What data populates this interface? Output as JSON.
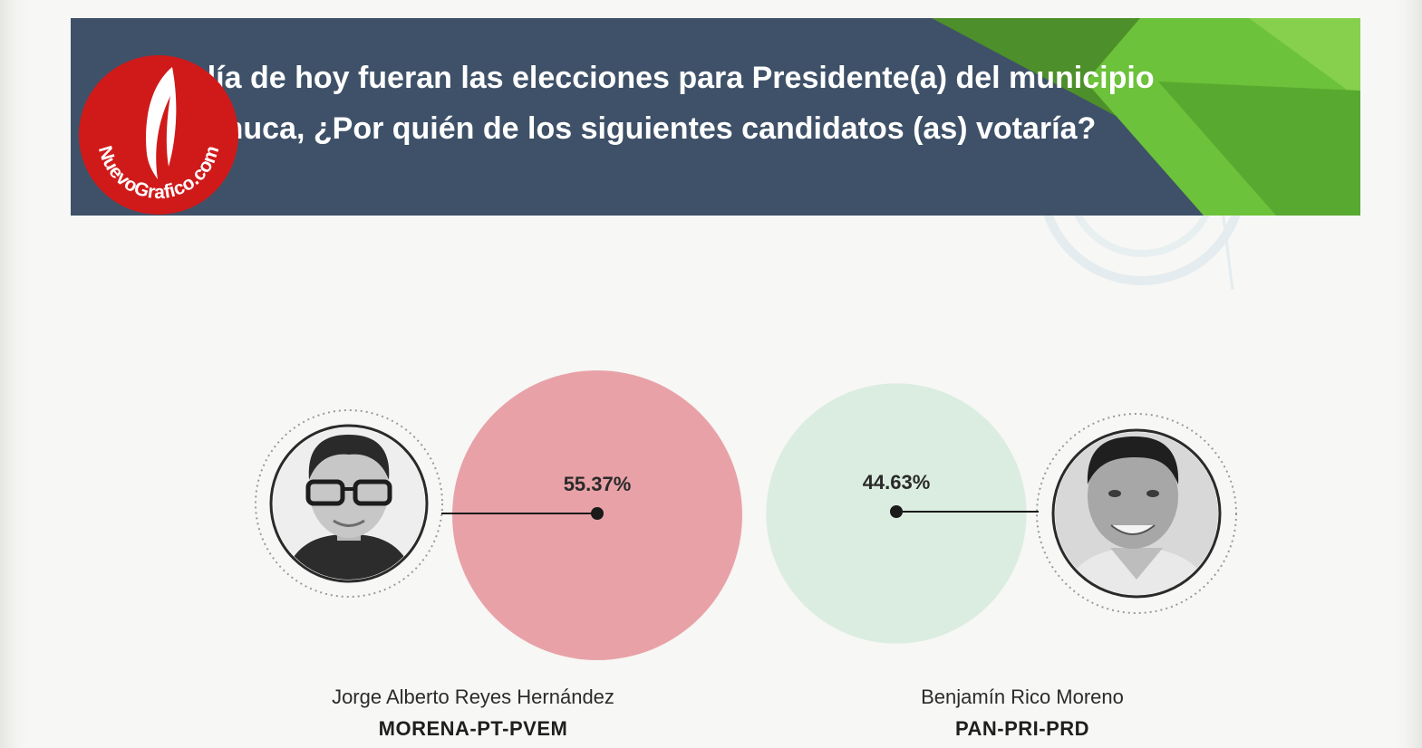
{
  "header": {
    "title": "Si el día de hoy fueran las elecciones para Presidente(a) del municipio de Pachuca, ¿Por quién de los siguientes candidatos (as) votaría?",
    "banner_color": "#3e5168",
    "accent_green": "#5cb832"
  },
  "watermark": {
    "text": "NuevoGrafico.com",
    "icon": "feather-icon",
    "color": "#d01a1a"
  },
  "chart_data": {
    "type": "bubble",
    "title": "",
    "unit": "%",
    "series": [
      {
        "name": "Jorge Alberto Reyes Hernández",
        "party": "MORENA-PT-PVEM",
        "value": 55.37,
        "label": "55.37%",
        "color": "#e8a2a7"
      },
      {
        "name": "Benjamín Rico Moreno",
        "party": "PAN-PRI-PRD",
        "value": 44.63,
        "label": "44.63%",
        "color": "#dbede0"
      }
    ]
  },
  "candidates": [
    {
      "name": "Jorge Alberto Reyes Hernández",
      "party": "MORENA-PT-PVEM",
      "photo_icon": "candidate-portrait-icon"
    },
    {
      "name": "Benjamín Rico Moreno",
      "party": "PAN-PRI-PRD",
      "photo_icon": "candidate-portrait-icon"
    }
  ]
}
